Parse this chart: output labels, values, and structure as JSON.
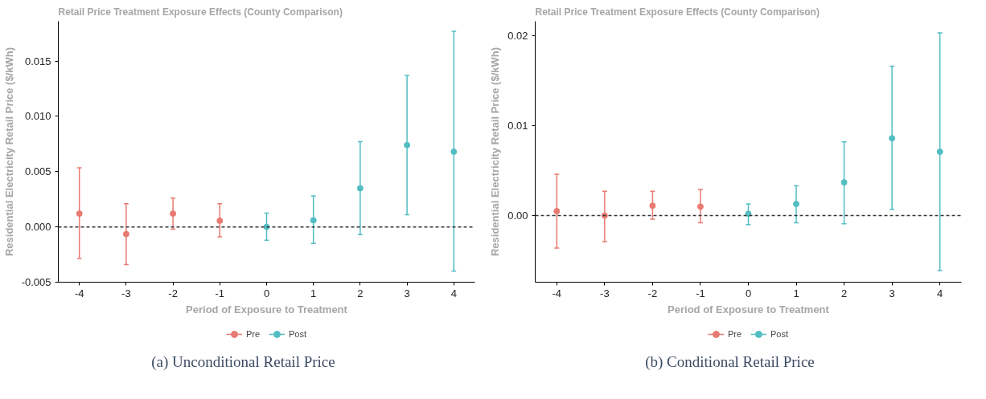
{
  "chart_data": [
    {
      "type": "scatter",
      "title": "Retail Price Treatment Exposure Effects (County Comparison)",
      "xlabel": "Period of Exposure to Treatment",
      "ylabel": "Residential Electricity Retail Price ($/kWh)",
      "annotations": [
        "(a) Unconditional Retail Price"
      ],
      "xlim": [
        -4.45,
        4.45
      ],
      "xticks": [
        -4,
        -3,
        -2,
        -1,
        0,
        1,
        2,
        3,
        4
      ],
      "ylim": [
        -0.005,
        0.0186
      ],
      "yticks": [
        {
          "value": -0.005,
          "label": "-0.005"
        },
        {
          "value": 0.0,
          "label": "0.000"
        },
        {
          "value": 0.005,
          "label": "0.005"
        },
        {
          "value": 0.01,
          "label": "0.010"
        },
        {
          "value": 0.015,
          "label": "0.015"
        }
      ],
      "grid": false,
      "legend": "bottom",
      "marker": "circle",
      "ref_lines": [
        {
          "axis": "y",
          "value": 0,
          "line_style": "dashed",
          "color": "#333333"
        }
      ],
      "series": [
        {
          "name": "Pre",
          "color": "#e87a72",
          "x": [
            -4,
            -3,
            -2,
            -1
          ],
          "values": [
            0.0012,
            -0.00065,
            0.0012,
            0.00056
          ],
          "errors": [
            [
              -0.00285,
              0.00535
            ],
            [
              -0.0034,
              0.0021
            ],
            [
              -0.0002,
              0.0026
            ],
            [
              -0.0009,
              0.0021
            ]
          ]
        },
        {
          "name": "Post",
          "color": "#52bdc2",
          "x": [
            0,
            1,
            2,
            3,
            4
          ],
          "values": [
            0.0,
            0.0006,
            0.0035,
            0.0074,
            0.0068
          ],
          "errors": [
            [
              -0.0012,
              0.00124
            ],
            [
              -0.0015,
              0.0028
            ],
            [
              -0.0007,
              0.0077
            ],
            [
              0.0011,
              0.0137
            ],
            [
              -0.004,
              0.0177
            ]
          ]
        }
      ]
    },
    {
      "type": "scatter",
      "title": "Retail Price Treatment Exposure Effects (County Comparison)",
      "xlabel": "Period of Exposure to Treatment",
      "ylabel": "Residential Electricity Retail Price ($/kWh)",
      "annotations": [
        "(b) Conditional Retail Price"
      ],
      "xlim": [
        -4.45,
        4.45
      ],
      "xticks": [
        -4,
        -3,
        -2,
        -1,
        0,
        1,
        2,
        3,
        4
      ],
      "ylim": [
        -0.0074,
        0.0216
      ],
      "yticks": [
        {
          "value": 0.0,
          "label": "0.00"
        },
        0.01,
        0.02
      ],
      "grid": false,
      "legend": "bottom",
      "marker": "circle",
      "ref_lines": [
        {
          "axis": "y",
          "value": 0,
          "line_style": "dashed",
          "color": "#333333"
        }
      ],
      "series": [
        {
          "name": "Pre",
          "color": "#e87a72",
          "x": [
            -4,
            -3,
            -2,
            -1
          ],
          "values": [
            0.0005,
            0.0,
            0.0011,
            0.001
          ],
          "errors": [
            [
              -0.0036,
              0.0046
            ],
            [
              -0.0029,
              0.0027
            ],
            [
              -0.0004,
              0.0027
            ],
            [
              -0.0008,
              0.0029
            ]
          ]
        },
        {
          "name": "Post",
          "color": "#52bdc2",
          "x": [
            0,
            1,
            2,
            3,
            4
          ],
          "values": [
            0.0002,
            0.0013,
            0.0037,
            0.0086,
            0.0071
          ],
          "errors": [
            [
              -0.001,
              0.0013
            ],
            [
              -0.0008,
              0.0033
            ],
            [
              -0.0009,
              0.0082
            ],
            [
              0.0007,
              0.0166
            ],
            [
              -0.0061,
              0.0203
            ]
          ]
        }
      ]
    }
  ]
}
